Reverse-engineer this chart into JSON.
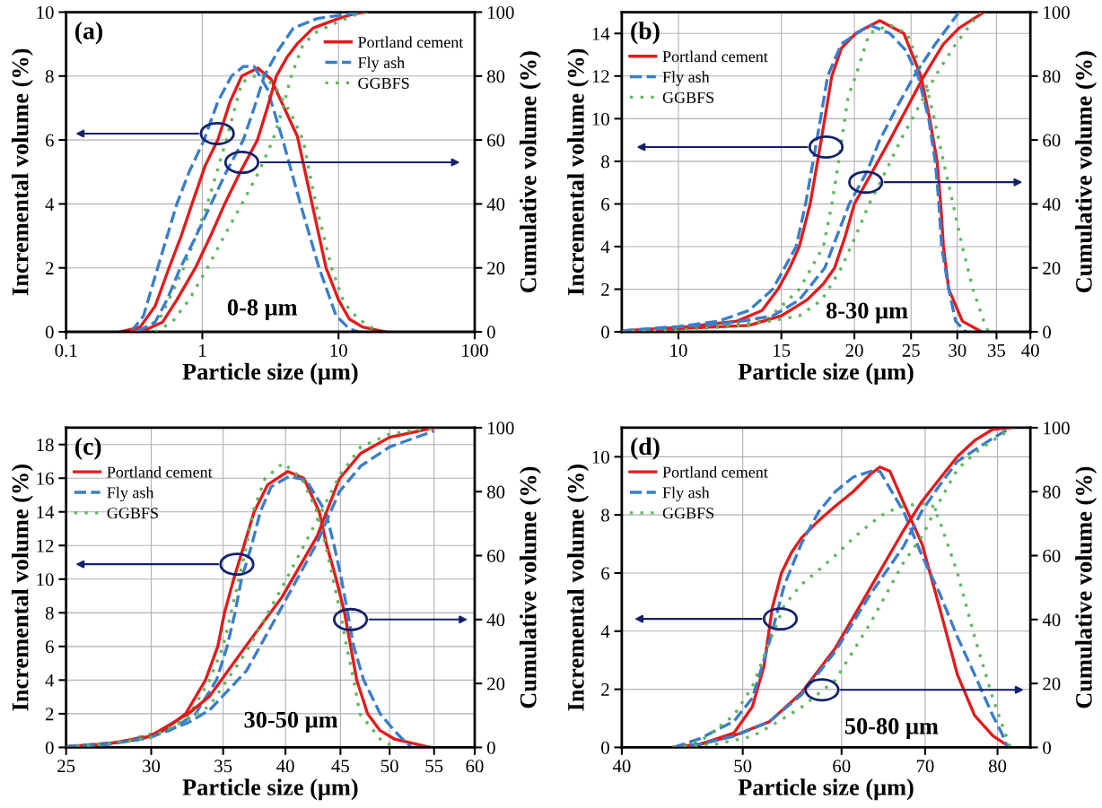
{
  "chart_data": [
    {
      "type": "line",
      "title": "(a)",
      "xlabel": "Particle size (μm)",
      "ylabel": "Incremental volume (%)",
      "y2label": "Cumulative volume (%)",
      "annotations": [
        "0-8 μm"
      ],
      "log": "x",
      "grid": true,
      "legend": "top right",
      "xlim": [
        0.1,
        100
      ],
      "xticks": [
        0.1,
        1,
        10,
        100
      ],
      "ylim": [
        0,
        10
      ],
      "yticks": [
        0,
        2,
        4,
        6,
        8,
        10
      ],
      "y2lim": [
        0,
        100
      ],
      "y2ticks": [
        0,
        20,
        40,
        60,
        80,
        100
      ],
      "series": [
        {
          "name": "Portland cement",
          "color": "#e31a1c",
          "line_style": "solid",
          "x": [
            0.25,
            0.35,
            0.45,
            0.57,
            0.7,
            0.84,
            1.05,
            1.3,
            1.6,
            1.95,
            2.55,
            3.2,
            4.0,
            5.0,
            6.4,
            8.1,
            10,
            12,
            15,
            22
          ],
          "values": [
            0,
            0.15,
            0.8,
            2.0,
            3.0,
            4.0,
            5.2,
            6.0,
            7.2,
            8.0,
            8.25,
            7.9,
            7.0,
            6.1,
            4.0,
            2.0,
            1.0,
            0.4,
            0.15,
            0
          ]
        },
        {
          "name": "Fly ash",
          "color": "#3a7dc9",
          "line_style": "dashed",
          "x": [
            0.3,
            0.37,
            0.47,
            0.65,
            0.8,
            1.03,
            1.3,
            1.64,
            2.0,
            2.4,
            3.0,
            3.9,
            5.25,
            7.2,
            9.6,
            12,
            14
          ],
          "values": [
            0,
            0.5,
            2.0,
            4.0,
            5.0,
            6.0,
            7.2,
            8.0,
            8.3,
            8.3,
            7.6,
            6.0,
            4.0,
            2.0,
            0.5,
            0.1,
            0
          ]
        },
        {
          "name": "GGBFS",
          "color": "#5cb85c",
          "line_style": "dotted",
          "x": [
            0.38,
            0.5,
            0.73,
            0.9,
            1.09,
            1.5,
            1.95,
            2.7,
            3.5,
            4.5,
            5.5,
            6.8,
            8.9,
            11,
            14,
            18,
            20
          ],
          "values": [
            0,
            0.5,
            2.0,
            3.0,
            4.0,
            6.0,
            7.8,
            8.1,
            7.6,
            6.8,
            6.0,
            4.0,
            2.0,
            0.9,
            0.4,
            0.1,
            0
          ]
        },
        {
          "color": "#e31a1c",
          "line_style": "solid",
          "axis": "y2",
          "x": [
            0.3,
            0.4,
            0.51,
            0.65,
            0.89,
            1.15,
            1.46,
            1.9,
            2.54,
            3.0,
            3.5,
            4.2,
            4.95,
            6.5,
            10,
            13,
            16
          ],
          "values": [
            0,
            1,
            3,
            10,
            20,
            30,
            40,
            50,
            60,
            70,
            80,
            86,
            90,
            95,
            98,
            99.5,
            100
          ]
        },
        {
          "color": "#3a7dc9",
          "line_style": "dashed",
          "axis": "y2",
          "x": [
            0.33,
            0.45,
            0.55,
            0.69,
            0.9,
            1.16,
            1.5,
            2.0,
            2.4,
            2.85,
            3.6,
            4.66,
            7,
            10,
            16
          ],
          "values": [
            0,
            3,
            10,
            20,
            30,
            40,
            50,
            60,
            70,
            80,
            88,
            95,
            98,
            99,
            100
          ]
        },
        {
          "color": "#5cb85c",
          "line_style": "dotted",
          "axis": "y2",
          "x": [
            0.45,
            0.6,
            0.8,
            1.09,
            1.45,
            1.95,
            2.6,
            3.3,
            3.9,
            4.5,
            5.5,
            7,
            10,
            13,
            16
          ],
          "values": [
            0,
            3,
            10,
            20,
            30,
            40,
            50,
            60,
            70,
            80,
            90,
            94,
            97,
            99,
            100
          ]
        }
      ]
    },
    {
      "type": "line",
      "title": "(b)",
      "xlabel": "Particle size (μm)",
      "ylabel": "Incremental volume (%)",
      "y2label": "Cumulative volume (%)",
      "annotations": [
        "8-30 μm"
      ],
      "log": "x",
      "grid": true,
      "legend": "top left",
      "xlim": [
        8,
        40
      ],
      "xticks": [
        10,
        15,
        20,
        25,
        30,
        35,
        40
      ],
      "ylim": [
        0,
        15
      ],
      "yticks": [
        0,
        2,
        4,
        6,
        8,
        10,
        12,
        14
      ],
      "y2lim": [
        0,
        100
      ],
      "y2ticks": [
        0,
        20,
        40,
        60,
        80,
        100
      ],
      "series": [
        {
          "name": "Portland cement",
          "color": "#e31a1c",
          "line_style": "solid",
          "x": [
            8,
            10,
            12.6,
            13.9,
            14.8,
            15.5,
            16.1,
            16.8,
            17.3,
            17.8,
            18.3,
            19,
            20.1,
            22.1,
            24.3,
            26,
            26.9,
            27.7,
            28.1,
            28.4,
            29,
            30.6,
            33
          ],
          "values": [
            0.05,
            0.2,
            0.5,
            1.0,
            2.0,
            3.0,
            4.0,
            6.0,
            8.0,
            10.0,
            12.0,
            13.3,
            14.0,
            14.6,
            14.0,
            12.0,
            10.0,
            8.0,
            6.0,
            4.0,
            2.0,
            0.5,
            0
          ]
        },
        {
          "name": "Fly ash",
          "color": "#3a7dc9",
          "line_style": "dashed",
          "x": [
            8,
            10,
            11.7,
            13.2,
            14.5,
            15.9,
            16.5,
            17.0,
            17.5,
            18.0,
            19,
            21.2,
            23,
            24.5,
            25.7,
            26.8,
            27.5,
            27.9,
            28.2,
            29,
            29.8,
            31
          ],
          "values": [
            0.05,
            0.25,
            0.5,
            1.0,
            2.0,
            4.0,
            6.0,
            8.0,
            10.0,
            12.0,
            13.5,
            14.4,
            14.0,
            13.2,
            12.0,
            10.0,
            8.0,
            6.0,
            4.0,
            2.0,
            0.5,
            0
          ]
        },
        {
          "name": "GGBFS",
          "color": "#5cb85c",
          "line_style": "dotted",
          "x": [
            8,
            10,
            14.1,
            16.1,
            17.7,
            18.3,
            18.8,
            19.5,
            20.1,
            21.2,
            23,
            24.6,
            26.3,
            27.4,
            28.4,
            29.5,
            30.6,
            31.9,
            33.3,
            33.9
          ],
          "values": [
            0.02,
            0.15,
            0.5,
            2.0,
            4.0,
            6.0,
            8.0,
            11.0,
            12.0,
            14.0,
            14.4,
            14.0,
            12.0,
            10.0,
            8.0,
            6.0,
            4.0,
            2.0,
            0.5,
            0
          ]
        },
        {
          "color": "#e31a1c",
          "line_style": "solid",
          "axis": "y2",
          "x": [
            8,
            10,
            13.2,
            15,
            16.6,
            17.7,
            18.5,
            19.3,
            20,
            21,
            23,
            24.6,
            26.3,
            28.4,
            30.2,
            33.3
          ],
          "values": [
            0,
            1,
            2,
            5,
            10,
            15,
            20,
            30,
            40,
            47,
            60,
            70,
            80,
            90,
            95,
            100
          ]
        },
        {
          "color": "#3a7dc9",
          "line_style": "dashed",
          "axis": "y2",
          "x": [
            8,
            10,
            12.5,
            14.5,
            16.1,
            17.8,
            19.6,
            21,
            22.1,
            23.6,
            25.3,
            27.5,
            30.2
          ],
          "values": [
            0,
            1.5,
            3,
            5,
            10,
            20,
            40,
            50,
            60,
            70,
            80,
            90,
            100
          ]
        },
        {
          "color": "#5cb85c",
          "line_style": "dotted",
          "axis": "y2",
          "x": [
            8,
            10,
            13,
            16.1,
            17.6,
            19,
            20.1,
            21.2,
            22.6,
            24,
            25.7,
            27.5,
            29.8,
            32.8
          ],
          "values": [
            0,
            0.5,
            2,
            5,
            10,
            20,
            30,
            40,
            50,
            60,
            70,
            80,
            90,
            100
          ]
        }
      ]
    },
    {
      "type": "line",
      "title": "(c)",
      "xlabel": "Particle size (μm)",
      "ylabel": "Incremental volume (%)",
      "y2label": "Cumulative volume (%)",
      "annotations": [
        "30-50 μm"
      ],
      "log": "x",
      "grid": true,
      "legend": "top left",
      "xlim": [
        25,
        60
      ],
      "xticks": [
        25,
        30,
        35,
        40,
        45,
        50,
        55,
        60
      ],
      "ylim": [
        0,
        19
      ],
      "yticks": [
        0,
        2,
        4,
        6,
        8,
        10,
        12,
        14,
        16,
        18
      ],
      "y2lim": [
        0,
        100
      ],
      "y2ticks": [
        0,
        20,
        40,
        60,
        80,
        100
      ],
      "series": [
        {
          "name": "Portland cement",
          "color": "#e31a1c",
          "line_style": "solid",
          "x": [
            25,
            27.2,
            29.4,
            30.8,
            32.3,
            33.7,
            34.6,
            35.1,
            35.8,
            36.6,
            37.4,
            38.5,
            40.2,
            41.6,
            43.0,
            43.7,
            44.6,
            45.4,
            46.0,
            46.6,
            47.7,
            49.0,
            50.5,
            54.6
          ],
          "values": [
            0.05,
            0.2,
            0.5,
            1.0,
            2.0,
            4.0,
            6.0,
            8.0,
            10.0,
            12.0,
            14.0,
            15.6,
            16.4,
            16.0,
            14.0,
            12.0,
            10.0,
            8.0,
            6.0,
            4.0,
            2.0,
            1.0,
            0.5,
            0
          ]
        },
        {
          "name": "Fly ash",
          "color": "#3a7dc9",
          "line_style": "dashed",
          "x": [
            25,
            28,
            31.2,
            33.0,
            34.5,
            35.3,
            35.9,
            36.4,
            37.2,
            37.9,
            38.8,
            40.3,
            41.8,
            43.6,
            44.4,
            45.1,
            45.7,
            46.3,
            47.3,
            49.0,
            50.5,
            51.4,
            52.4
          ],
          "values": [
            0.05,
            0.3,
            1.0,
            2.0,
            4.0,
            6.0,
            8.0,
            10.0,
            12.0,
            14.0,
            15.5,
            16.1,
            15.9,
            14.0,
            12.0,
            10.0,
            8.0,
            6.0,
            4.0,
            2.0,
            1.0,
            0.5,
            0
          ]
        },
        {
          "name": "GGBFS",
          "color": "#5cb85c",
          "line_style": "dotted",
          "x": [
            25,
            28,
            30.8,
            32.6,
            34.0,
            35.0,
            35.6,
            36.2,
            36.8,
            37.3,
            38.3,
            39.8,
            41.4,
            42.8,
            43.6,
            44.3,
            45.0,
            45.6,
            46.3,
            46.9,
            48.3,
            49.0,
            50.5
          ],
          "values": [
            0.05,
            0.3,
            1.0,
            2.0,
            4.0,
            6.0,
            8.0,
            10.0,
            12.0,
            14.0,
            16.0,
            16.9,
            16.0,
            14.0,
            12.0,
            10.0,
            8.0,
            6.0,
            4.0,
            2.0,
            1.0,
            0.5,
            0
          ]
        },
        {
          "color": "#e31a1c",
          "line_style": "solid",
          "axis": "y2",
          "x": [
            25,
            27.2,
            29.9,
            32.5,
            34.0,
            36.8,
            39.7,
            42.8,
            44.9,
            47.0,
            50.0,
            55.0
          ],
          "values": [
            0,
            1,
            3.4,
            10.6,
            16,
            32,
            47,
            66,
            84,
            92,
            97,
            100
          ]
        },
        {
          "color": "#3a7dc9",
          "line_style": "dashed",
          "axis": "y2",
          "x": [
            25,
            27.2,
            29.9,
            32.5,
            34.0,
            36.8,
            39.7,
            42.8,
            44.9,
            47.0,
            50.0,
            55.0
          ],
          "values": [
            0,
            0.8,
            3,
            7.8,
            11.7,
            24,
            44,
            64,
            80,
            88,
            94,
            99
          ]
        },
        {
          "color": "#5cb85c",
          "line_style": "dotted",
          "axis": "y2",
          "x": [
            25,
            27.2,
            29.9,
            32.5,
            34.0,
            36.8,
            39.7,
            42.8,
            44.9,
            47.0,
            50.0,
            55.0
          ],
          "values": [
            0,
            1,
            3,
            9,
            13,
            30,
            50,
            71,
            85,
            94,
            98,
            100
          ]
        }
      ]
    },
    {
      "type": "line",
      "title": "(d)",
      "xlabel": "Particle size (μm)",
      "ylabel": "Incremental volume (%)",
      "y2label": "Cumulative volume (%)",
      "annotations": [
        "50-80 μm"
      ],
      "log": "x",
      "grid": true,
      "legend": "top left",
      "xlim": [
        40,
        85
      ],
      "xticks": [
        40,
        50,
        60,
        70,
        80
      ],
      "ylim": [
        0,
        11
      ],
      "yticks": [
        0,
        2,
        4,
        6,
        8,
        10
      ],
      "y2lim": [
        0,
        100
      ],
      "y2ticks": [
        0,
        20,
        40,
        60,
        80,
        100
      ],
      "series": [
        {
          "name": "Portland cement",
          "color": "#e31a1c",
          "line_style": "solid",
          "x": [
            44,
            46.2,
            49.2,
            50.9,
            52.0,
            52.8,
            53.7,
            54.7,
            55.7,
            57.5,
            59.3,
            61.3,
            63.3,
            64.4,
            65.6,
            67.3,
            69.6,
            71.9,
            74.3,
            76.7,
            79.3,
            81.9
          ],
          "values": [
            0,
            0.1,
            0.5,
            1.4,
            2.8,
            4.8,
            6.0,
            6.7,
            7.2,
            7.8,
            8.3,
            8.8,
            9.4,
            9.65,
            9.5,
            8.4,
            7.0,
            4.8,
            2.5,
            1.1,
            0.4,
            0
          ]
        },
        {
          "name": "Fly ash",
          "color": "#3a7dc9",
          "line_style": "dashed",
          "x": [
            44,
            46.2,
            49.2,
            50.9,
            52.5,
            54.0,
            55.7,
            57.5,
            59.3,
            61.3,
            63.3,
            64.4,
            67.3,
            69.6,
            71.9,
            74.3,
            76.7,
            79.3,
            80.6,
            81.5
          ],
          "values": [
            0,
            0.3,
            0.9,
            1.7,
            3.6,
            5.6,
            7.0,
            8.1,
            8.8,
            9.3,
            9.5,
            9.5,
            8.1,
            6.6,
            5.3,
            3.8,
            2.5,
            1.1,
            0.5,
            0
          ]
        },
        {
          "name": "GGBFS",
          "color": "#5cb85c",
          "line_style": "dotted",
          "x": [
            44,
            46.2,
            49.2,
            50.9,
            52.5,
            54.0,
            55.7,
            57.5,
            59.3,
            61.3,
            63.3,
            65.2,
            67.3,
            69.6,
            71.0,
            71.9,
            74.3,
            76.7,
            79.3,
            81.9
          ],
          "values": [
            0,
            0.2,
            1.1,
            2.1,
            3.6,
            4.9,
            5.6,
            6.1,
            6.6,
            7.2,
            7.7,
            8.1,
            8.3,
            8.4,
            8.3,
            7.8,
            6.0,
            3.8,
            1.7,
            0
          ]
        },
        {
          "color": "#e31a1c",
          "line_style": "solid",
          "axis": "y2",
          "x": [
            44,
            46.2,
            49.2,
            52.5,
            55.7,
            59.3,
            63.3,
            67.3,
            69.6,
            71.9,
            74.3,
            76.7,
            79.3,
            81.9
          ],
          "values": [
            0,
            1,
            3.7,
            8,
            17,
            31,
            50,
            68,
            77,
            84,
            91,
            96,
            99.5,
            100
          ]
        },
        {
          "color": "#3a7dc9",
          "line_style": "dashed",
          "axis": "y2",
          "x": [
            44,
            46.2,
            49.2,
            52.5,
            55.7,
            59.3,
            63.3,
            67.3,
            69.6,
            71.9,
            74.3,
            76.7,
            79.3,
            81.5
          ],
          "values": [
            0,
            1,
            3.5,
            8,
            16.4,
            30,
            48,
            63,
            74,
            82,
            89.5,
            93,
            96.7,
            99.4
          ]
        },
        {
          "color": "#5cb85c",
          "line_style": "dotted",
          "axis": "y2",
          "x": [
            44,
            47.6,
            50.9,
            52.5,
            55.7,
            59.3,
            63.3,
            67.3,
            69.6,
            71.9,
            74.3,
            76.7,
            79.3,
            82.3
          ],
          "values": [
            0,
            1,
            3.5,
            6.4,
            12.5,
            21,
            39,
            58,
            66,
            77,
            87,
            92,
            96,
            100
          ]
        }
      ]
    }
  ]
}
